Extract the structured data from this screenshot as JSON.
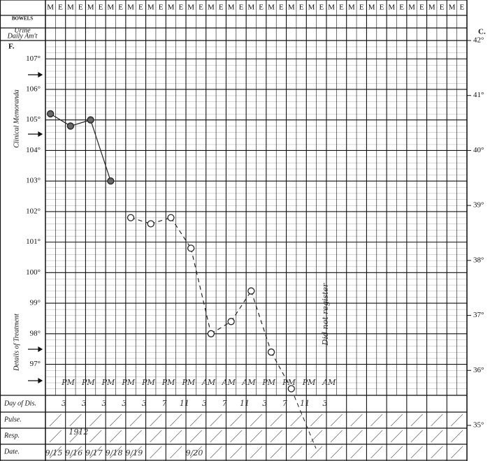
{
  "header": {
    "bowels": "BOWELS",
    "urine": [
      "Urine",
      "Daily Am't"
    ]
  },
  "chart_data": {
    "type": "line",
    "categories": [
      "M",
      "E",
      "M",
      "E",
      "M",
      "E",
      "M",
      "E",
      "M",
      "E",
      "M",
      "E",
      "M",
      "E",
      "M",
      "E",
      "M",
      "E",
      "M",
      "E",
      "M",
      "E",
      "M",
      "E",
      "M",
      "E",
      "M",
      "E",
      "M",
      "E",
      "M",
      "E",
      "M",
      "E",
      "M",
      "E",
      "M",
      "E",
      "M",
      "E",
      "M",
      "E"
    ],
    "series": [
      {
        "color": "#222",
        "style": "solid",
        "marker": "filled",
        "values": [
          105.2,
          null,
          104.8,
          null,
          105.0,
          null,
          103.0,
          null,
          null,
          null,
          null,
          null,
          null,
          null,
          null,
          null,
          null,
          null,
          null,
          null,
          null,
          null,
          null,
          null,
          null,
          null,
          null,
          null,
          null,
          null,
          null,
          null,
          null,
          null,
          null,
          null,
          null,
          null,
          null,
          null,
          null,
          null
        ]
      },
      {
        "color": "#222",
        "style": "dashed",
        "marker": "open",
        "values": [
          null,
          null,
          null,
          null,
          null,
          null,
          null,
          null,
          101.8,
          null,
          101.6,
          null,
          101.8,
          null,
          100.8,
          null,
          98.0,
          null,
          98.4,
          null,
          99.4,
          null,
          97.4,
          null,
          96.2,
          null,
          null,
          null,
          null,
          null,
          null,
          null,
          null,
          null,
          null,
          null,
          null,
          null,
          null,
          null,
          null,
          null
        ]
      }
    ],
    "ylim": [
      95,
      107.6
    ],
    "yticks": [
      {
        "value": 97,
        "label": "97°"
      },
      {
        "value": 98,
        "label": "98°"
      },
      {
        "value": 99,
        "label": "99°"
      },
      {
        "value": 100,
        "label": "100°"
      },
      {
        "value": 101,
        "label": "101°"
      },
      {
        "value": 102,
        "label": "102°"
      },
      {
        "value": 103,
        "label": "103°"
      },
      {
        "value": 104,
        "label": "104°"
      },
      {
        "value": 105,
        "label": "105°"
      },
      {
        "value": 106,
        "label": "106°"
      },
      {
        "value": 107,
        "label": "107°"
      }
    ],
    "y2lim": [
      35,
      42
    ],
    "y2ticks": [
      {
        "value": 35,
        "label": "35°"
      },
      {
        "value": 36,
        "label": "36°"
      },
      {
        "value": 37,
        "label": "37°"
      },
      {
        "value": 38,
        "label": "38°"
      },
      {
        "value": 39,
        "label": "39°"
      },
      {
        "value": 40,
        "label": "40°"
      },
      {
        "value": 41,
        "label": "41°"
      },
      {
        "value": 42,
        "label": "42°"
      }
    ],
    "grid": true
  },
  "annotations": {
    "f_unit": "F.",
    "c_unit": "C.",
    "clinical_memoranda": "Clinical Memoranda",
    "details_of_treatment": "Details of Treatment",
    "not_registered": "Did not register",
    "row_labels": [
      "Day of Dis.",
      "Pulse.",
      "Resp.",
      "Date."
    ],
    "hours": [
      "3",
      "3",
      "3",
      "3",
      "3",
      "7",
      "11",
      "3",
      "7",
      "11",
      "3",
      "7",
      "11",
      "3"
    ],
    "periods": [
      "PM",
      "PM",
      "PM",
      "PM",
      "PM",
      "PM",
      "PM",
      "AM",
      "AM",
      "AM",
      "PM",
      "PM",
      "PM",
      "AM"
    ],
    "year": "1912",
    "dates": [
      "9/15",
      "9/16",
      "9/17",
      "9/18",
      "9/19",
      "9/20"
    ]
  }
}
